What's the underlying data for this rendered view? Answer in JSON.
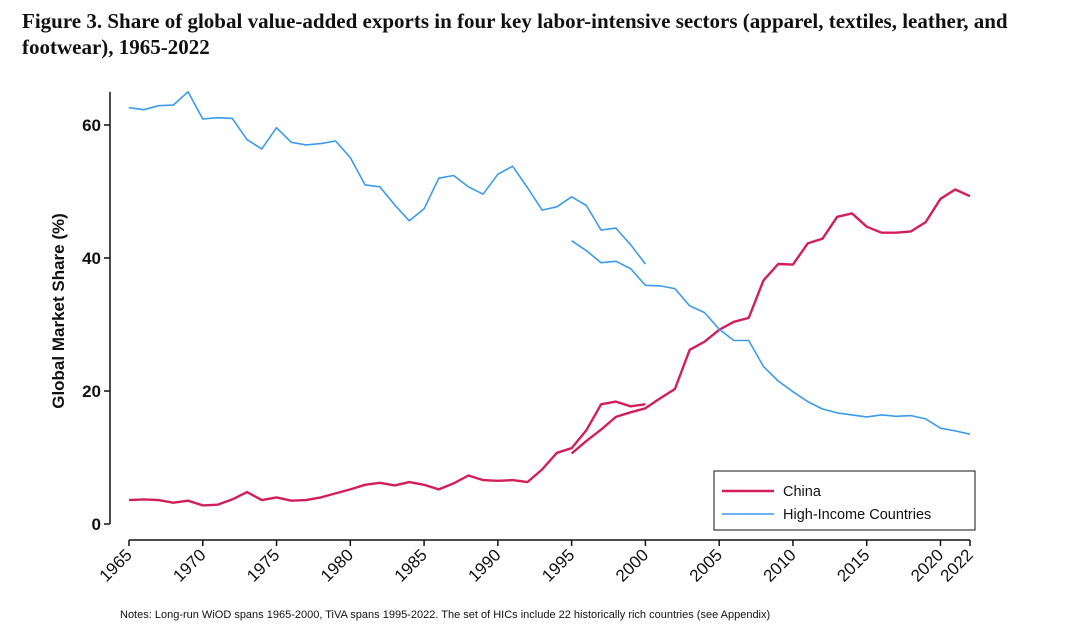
{
  "title": "Figure 3. Share of global value-added exports in four key labor-intensive sectors (apparel, textiles, leather, and footwear), 1965-2022",
  "note": "Notes: Long-run WiOD spans 1965-2000, TiVA spans 1995-2022. The set of HICs include 22 historically rich countries (see Appendix)",
  "colors": {
    "china": "#d21f5a",
    "hic": "#3c9bea",
    "axis": "#111111"
  },
  "chart_data": {
    "type": "line",
    "title": "Figure 3. Share of global value-added exports in four key labor-intensive sectors (apparel, textiles, leather, and footwear), 1965-2022",
    "xlabel": "",
    "ylabel": "Global Market Share (%)",
    "xlim": [
      1965,
      2022
    ],
    "ylim": [
      0,
      65
    ],
    "yticks": [
      0,
      20,
      40,
      60
    ],
    "xticks": [
      1965,
      1970,
      1975,
      1980,
      1985,
      1990,
      1995,
      2000,
      2005,
      2010,
      2015,
      2020,
      2022
    ],
    "grid": false,
    "legend_position": "bottom-right",
    "series": [
      {
        "name": "China",
        "color": "#d21f5a",
        "segments": [
          {
            "x": [
              1965,
              1966,
              1967,
              1968,
              1969,
              1970,
              1971,
              1972,
              1973,
              1974,
              1975,
              1976,
              1977,
              1978,
              1979,
              1980,
              1981,
              1982,
              1983,
              1984,
              1985,
              1986,
              1987,
              1988,
              1989,
              1990,
              1991,
              1992,
              1993,
              1994,
              1995,
              1996,
              1997,
              1998,
              1999,
              2000
            ],
            "y": [
              3.6,
              3.7,
              3.6,
              3.2,
              3.5,
              2.8,
              2.9,
              3.7,
              4.8,
              3.6,
              4.0,
              3.5,
              3.6,
              4.0,
              4.6,
              5.2,
              5.9,
              6.2,
              5.8,
              6.3,
              5.9,
              5.2,
              6.1,
              7.3,
              6.6,
              6.5,
              6.6,
              6.3,
              8.2,
              10.7,
              11.4,
              14.1,
              18.0,
              18.4,
              17.7,
              18.0
            ]
          },
          {
            "x": [
              1995,
              1996,
              1997,
              1998,
              1999,
              2000,
              2001,
              2002,
              2003,
              2004,
              2005,
              2006,
              2007,
              2008,
              2009,
              2010,
              2011,
              2012,
              2013,
              2014,
              2015,
              2016,
              2017,
              2018,
              2019,
              2020,
              2021,
              2022
            ],
            "y": [
              10.6,
              12.5,
              14.2,
              16.1,
              16.8,
              17.4,
              18.9,
              20.3,
              26.2,
              27.4,
              29.2,
              30.4,
              31.0,
              36.6,
              39.1,
              39.0,
              42.2,
              42.9,
              46.2,
              46.7,
              44.7,
              43.8,
              43.8,
              44.0,
              45.4,
              48.9,
              50.3,
              49.3
            ]
          }
        ]
      },
      {
        "name": "High-Income Countries",
        "color": "#3c9bea",
        "segments": [
          {
            "x": [
              1965,
              1966,
              1967,
              1968,
              1969,
              1970,
              1971,
              1972,
              1973,
              1974,
              1975,
              1976,
              1977,
              1978,
              1979,
              1980,
              1981,
              1982,
              1983,
              1984,
              1985,
              1986,
              1987,
              1988,
              1989,
              1990,
              1991,
              1992,
              1993,
              1994,
              1995,
              1996,
              1997,
              1998,
              1999,
              2000
            ],
            "y": [
              62.6,
              62.3,
              62.9,
              63.0,
              65.0,
              60.9,
              61.1,
              61.0,
              57.8,
              56.4,
              59.6,
              57.4,
              57.0,
              57.2,
              57.6,
              55.1,
              51.0,
              50.7,
              48.0,
              45.6,
              47.4,
              52.0,
              52.4,
              50.7,
              49.6,
              52.6,
              53.8,
              50.6,
              47.2,
              47.7,
              49.2,
              47.9,
              44.2,
              44.5,
              42.0,
              39.1
            ]
          },
          {
            "x": [
              1995,
              1996,
              1997,
              1998,
              1999,
              2000,
              2001,
              2002,
              2003,
              2004,
              2005,
              2006,
              2007,
              2008,
              2009,
              2010,
              2011,
              2012,
              2013,
              2014,
              2015,
              2016,
              2017,
              2018,
              2019,
              2020,
              2021,
              2022
            ],
            "y": [
              42.6,
              41.1,
              39.3,
              39.5,
              38.4,
              35.9,
              35.8,
              35.4,
              32.8,
              31.8,
              29.3,
              27.6,
              27.6,
              23.7,
              21.5,
              19.9,
              18.4,
              17.3,
              16.7,
              16.4,
              16.1,
              16.4,
              16.2,
              16.3,
              15.8,
              14.4,
              14.0,
              13.5
            ]
          }
        ]
      }
    ]
  }
}
